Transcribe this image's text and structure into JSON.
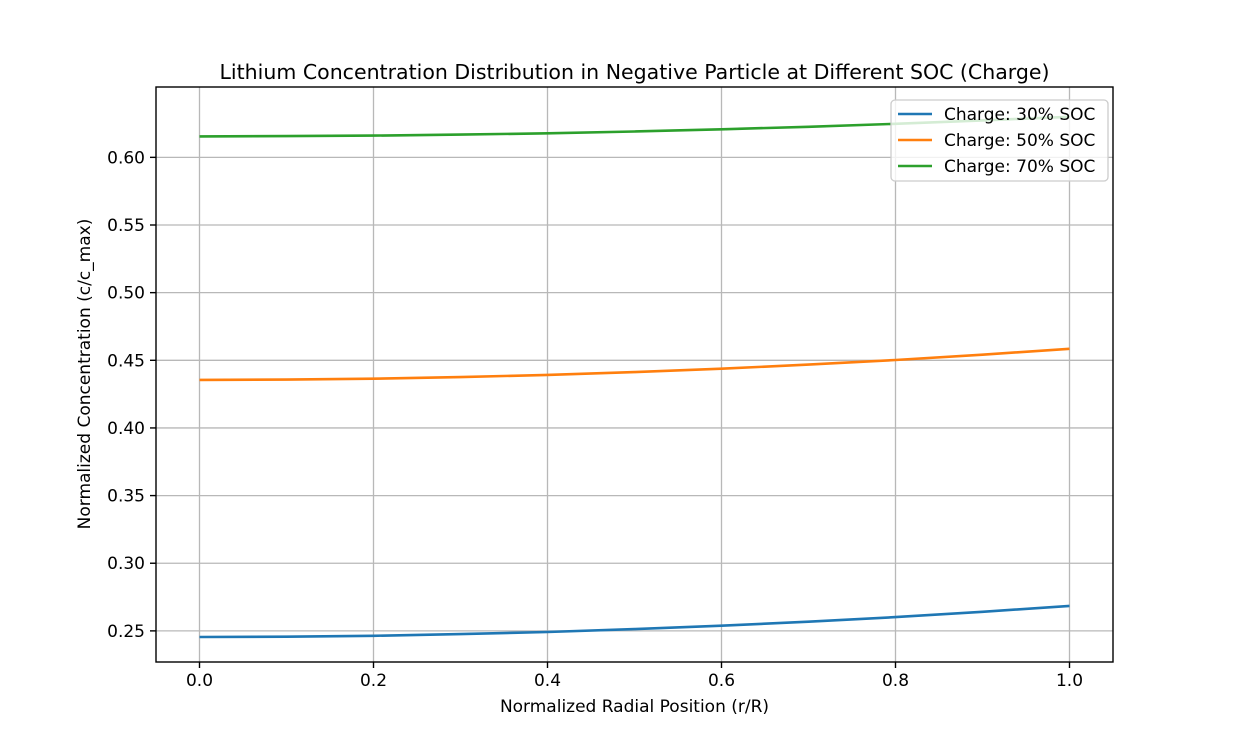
{
  "figure": {
    "background": "#ffffff"
  },
  "chart_data": {
    "type": "line",
    "title": "Lithium Concentration Distribution in Negative Particle at Different SOC (Charge)",
    "xlabel": "Normalized Radial Position (r/R)",
    "ylabel": "Normalized Concentration (c/c_max)",
    "x": [
      0.0,
      0.1,
      0.2,
      0.3,
      0.4,
      0.5,
      0.6,
      0.7,
      0.8,
      0.9,
      1.0
    ],
    "series": [
      {
        "name": "Charge: 30% SOC",
        "color": "#1f77b4",
        "values": [
          0.2455,
          0.2457,
          0.2464,
          0.2476,
          0.2492,
          0.2513,
          0.2538,
          0.2568,
          0.2602,
          0.2641,
          0.2685
        ]
      },
      {
        "name": "Charge: 50% SOC",
        "color": "#ff7f0e",
        "values": [
          0.4355,
          0.4357,
          0.4364,
          0.4376,
          0.4392,
          0.4413,
          0.4438,
          0.4468,
          0.4502,
          0.4541,
          0.4585
        ]
      },
      {
        "name": "Charge: 70% SOC",
        "color": "#2ca02c",
        "values": [
          0.6155,
          0.6157,
          0.6161,
          0.6168,
          0.6178,
          0.6191,
          0.6207,
          0.6226,
          0.6248,
          0.6273,
          0.63
        ]
      }
    ],
    "x_ticks": {
      "values": [
        0.0,
        0.2,
        0.4,
        0.6,
        0.8,
        1.0
      ],
      "labels": [
        "0.0",
        "0.2",
        "0.4",
        "0.6",
        "0.8",
        "1.0"
      ]
    },
    "y_ticks": {
      "values": [
        0.25,
        0.3,
        0.35,
        0.4,
        0.45,
        0.5,
        0.55,
        0.6
      ],
      "labels": [
        "0.25",
        "0.30",
        "0.35",
        "0.40",
        "0.45",
        "0.50",
        "0.55",
        "0.60"
      ]
    },
    "xlim": [
      -0.05,
      1.05
    ],
    "ylim": [
      0.227,
      0.652
    ],
    "grid": true,
    "legend": {
      "position": "upper right"
    }
  }
}
